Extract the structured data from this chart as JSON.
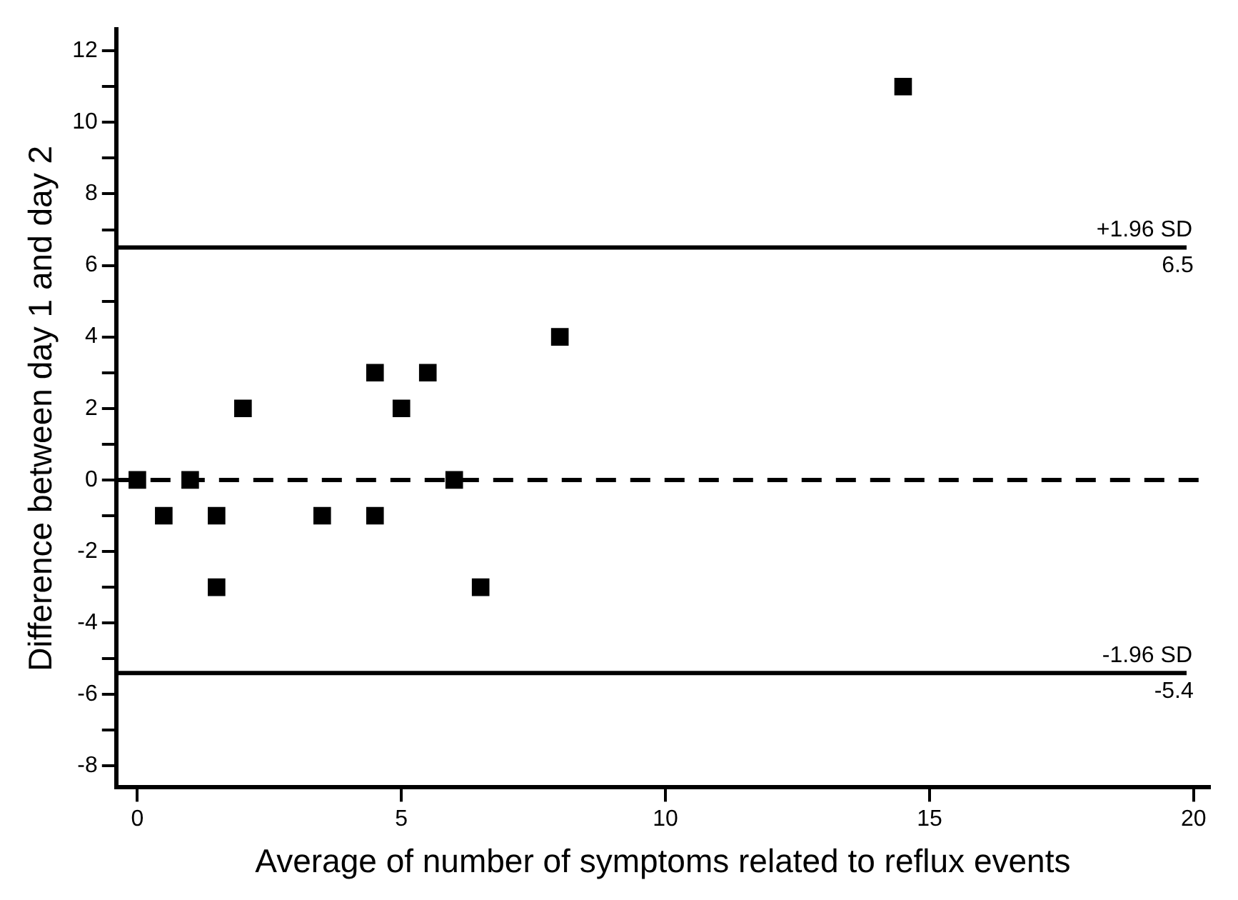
{
  "chart_data": {
    "type": "scatter",
    "xlabel": "Average of number of symptoms related to reflux events",
    "ylabel": "Difference between day 1 and day 2",
    "series": [
      {
        "color": "#000000",
        "x": [
          0,
          0.5,
          1,
          1.5,
          1.5,
          2,
          3.5,
          4.5,
          4.5,
          5,
          5.5,
          6,
          6.5,
          8,
          14.5
        ],
        "values": [
          0,
          -1,
          0,
          -1,
          -3,
          2,
          -1,
          3,
          -1,
          2,
          3,
          0,
          -3,
          4,
          11
        ]
      }
    ],
    "marker": "square",
    "xlim": [
      -0.4,
      20.3
    ],
    "xticks": [
      0,
      5,
      10,
      15,
      20
    ],
    "ylim": [
      -8.6,
      12.6
    ],
    "yticks": [
      -8,
      {
        "value": -7,
        "label": null
      },
      -6,
      {
        "value": -5,
        "label": null
      },
      -4,
      {
        "value": -3,
        "label": null
      },
      -2,
      {
        "value": -1,
        "label": null
      },
      0,
      {
        "value": 1,
        "label": null
      },
      2,
      {
        "value": 3,
        "label": null
      },
      4,
      {
        "value": 5,
        "label": null
      },
      6,
      {
        "value": 7,
        "label": null
      },
      8,
      {
        "value": 9,
        "label": null
      },
      10,
      {
        "value": 11,
        "label": null
      },
      12
    ],
    "ref_lines": [
      {
        "axis": "y",
        "value": 6.5,
        "label": "+1.96 SD",
        "color": "#000000",
        "line_style": "solid"
      },
      {
        "axis": "y",
        "value": 0,
        "color": "#000000",
        "line_style": "dashed"
      },
      {
        "axis": "y",
        "value": -5.4,
        "label": "-1.96 SD",
        "color": "#000000",
        "line_style": "solid"
      }
    ],
    "annotations": [
      {
        "text": "6.5",
        "x": 20,
        "y": 6.5
      },
      {
        "text": "-5.4",
        "x": 20,
        "y": -5.4
      }
    ],
    "grid": false,
    "legend": false
  }
}
